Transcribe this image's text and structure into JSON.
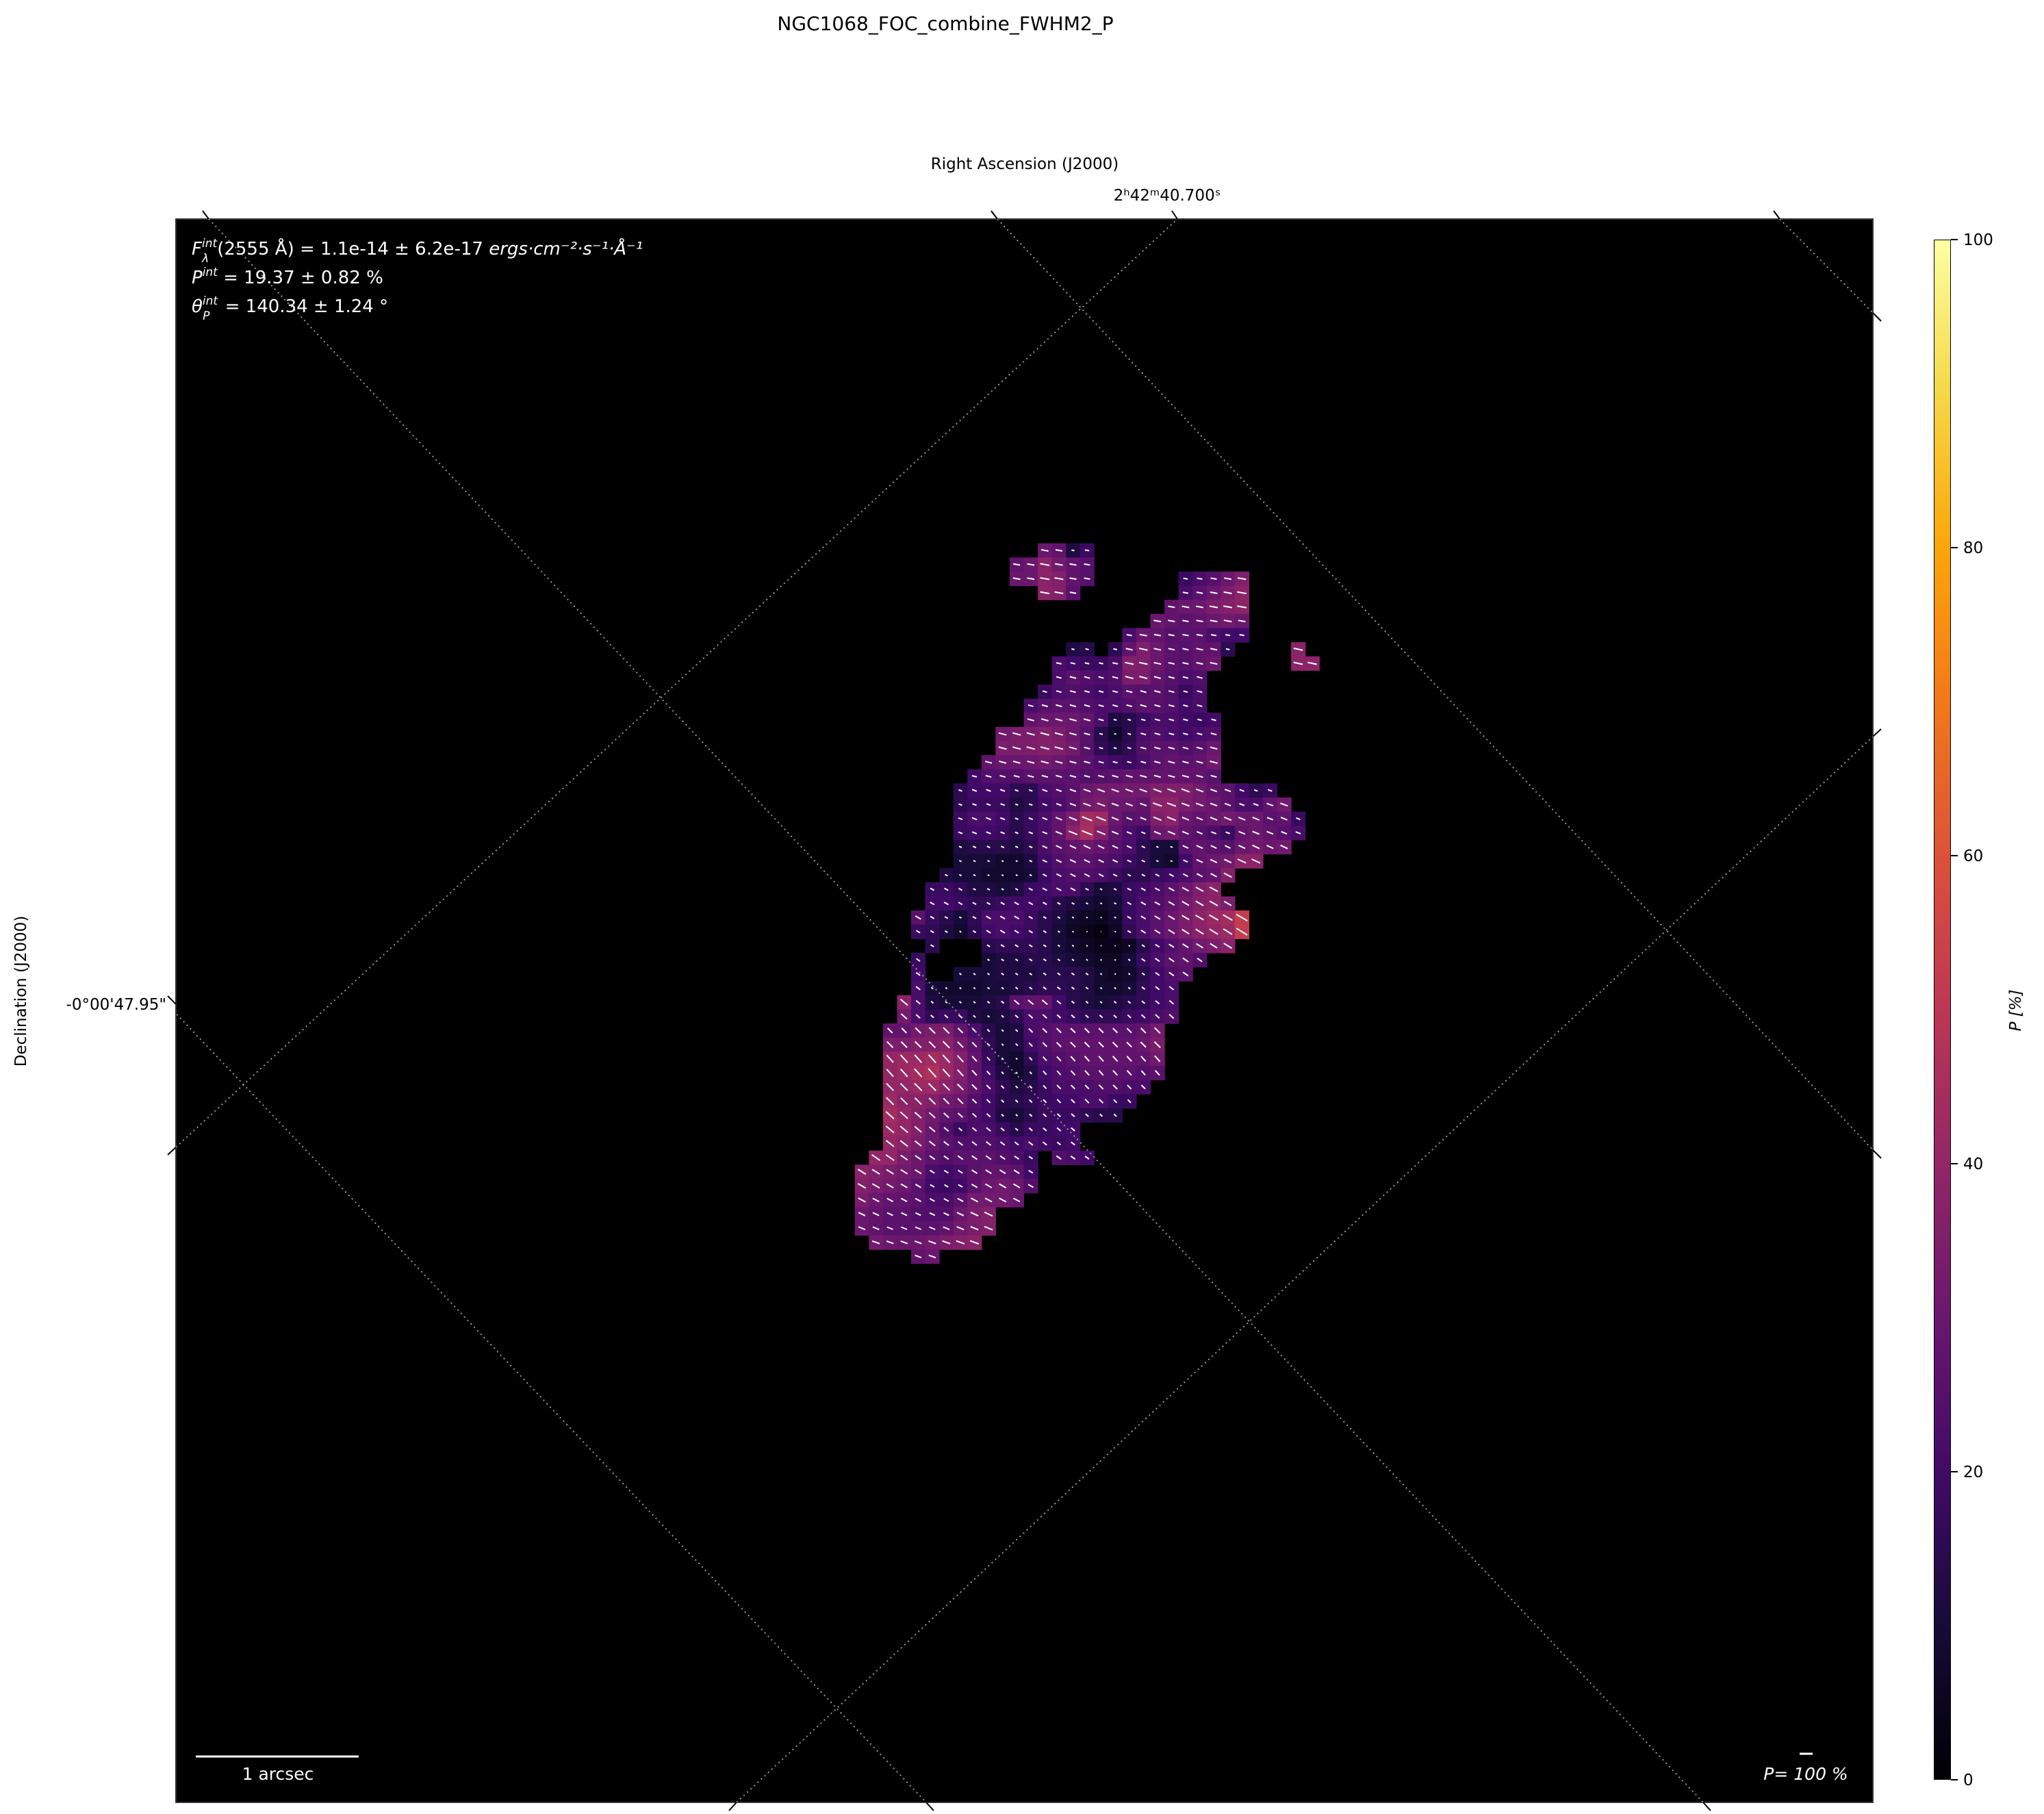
{
  "chart_data": {
    "type": "heatmap",
    "title": "NGC1068_FOC_combine_FWHM2_P",
    "xlabel": "Right Ascension (J2000)",
    "ylabel": "Declination (J2000)",
    "x_tick_label": "2ʰ42ᵐ40.700ˢ",
    "y_tick_label": "-0°00'47.95\"",
    "colorbar": {
      "label": "P [%]",
      "range": [
        0,
        100
      ],
      "ticks": [
        "0",
        "20",
        "40",
        "60",
        "80",
        "100"
      ],
      "colormap": "inferno"
    },
    "grid": "dotted WCS grid",
    "annotations": {
      "flux": {
        "symbol": "F",
        "sup": "int",
        "sub": "λ",
        "text": "(2555 Å) = 1.1e-14 ± 6.2e-17 ",
        "units": "ergs·cm⁻²·s⁻¹·Å⁻¹"
      },
      "pol": {
        "symbol": "P",
        "sup": "int",
        "text": " = 19.37 ± 0.82 %"
      },
      "angle": {
        "symbol": "θ",
        "sup": "int",
        "sub": "P",
        "text": " = 140.34 ± 1.24 °"
      }
    },
    "scale_bar_label": "1 arcsec",
    "vector_scale_label": "P= 100 %",
    "rows": [
      {
        "start": 15,
        "theta": 100,
        "p": [
          30,
          28,
          12,
          18
        ]
      },
      {
        "start": 13,
        "theta": 100,
        "p": [
          28,
          30,
          38,
          32,
          28,
          25
        ]
      },
      {
        "start": 13,
        "theta": 100,
        "p": [
          30,
          30,
          38,
          36,
          28,
          25,
          null,
          null,
          null,
          null,
          null,
          null,
          18,
          22,
          25,
          30,
          35
        ]
      },
      {
        "start": 15,
        "theta": 100,
        "p": [
          38,
          36,
          26,
          null,
          null,
          null,
          null,
          null,
          null,
          null,
          22,
          26,
          30,
          34,
          38
        ]
      },
      {
        "start": 24,
        "theta": 100,
        "p": [
          28,
          30,
          30,
          34,
          36,
          38
        ]
      },
      {
        "start": 23,
        "theta": 100,
        "p": [
          30,
          28,
          26,
          28,
          30,
          32,
          30
        ]
      },
      {
        "start": 21,
        "theta": 100,
        "p": [
          22,
          30,
          28,
          25,
          26,
          26,
          22,
          20,
          20
        ]
      },
      {
        "start": 17,
        "theta": 102,
        "p": [
          12,
          14,
          null,
          15,
          28,
          35,
          30,
          26,
          25,
          28,
          28,
          15,
          null,
          null,
          null,
          null,
          38
        ]
      },
      {
        "start": 16,
        "theta": 102,
        "p": [
          22,
          20,
          18,
          18,
          22,
          36,
          35,
          30,
          26,
          25,
          28,
          30,
          null,
          null,
          null,
          null,
          null,
          38,
          38
        ]
      },
      {
        "start": 16,
        "theta": 105,
        "p": [
          22,
          26,
          24,
          22,
          24,
          34,
          34,
          28,
          25,
          22,
          24
        ]
      },
      {
        "start": 15,
        "theta": 105,
        "p": [
          18,
          22,
          24,
          22,
          20,
          22,
          26,
          25,
          26,
          24,
          18,
          22
        ]
      },
      {
        "start": 14,
        "theta": 105,
        "p": [
          22,
          25,
          26,
          26,
          24,
          22,
          22,
          24,
          26,
          25,
          24,
          20,
          22
        ]
      },
      {
        "start": 14,
        "theta": 105,
        "p": [
          28,
          30,
          30,
          30,
          28,
          22,
          12,
          14,
          18,
          22,
          22,
          20,
          18,
          20
        ]
      },
      {
        "start": 12,
        "theta": 105,
        "p": [
          32,
          34,
          34,
          36,
          34,
          30,
          25,
          14,
          8,
          14,
          22,
          24,
          22,
          20,
          22,
          24
        ]
      },
      {
        "start": 12,
        "theta": 105,
        "p": [
          34,
          34,
          35,
          36,
          35,
          32,
          25,
          16,
          12,
          16,
          24,
          26,
          26,
          24,
          26,
          30
        ]
      },
      {
        "start": 11,
        "theta": 105,
        "p": [
          28,
          30,
          30,
          30,
          32,
          30,
          28,
          26,
          22,
          20,
          18,
          22,
          26,
          28,
          26,
          28,
          32
        ]
      },
      {
        "start": 10,
        "theta": 105,
        "p": [
          20,
          24,
          24,
          24,
          26,
          26,
          26,
          26,
          24,
          25,
          26,
          28,
          28,
          28,
          28,
          28,
          28,
          25
        ]
      },
      {
        "start": 9,
        "theta": 110,
        "p": [
          15,
          20,
          20,
          20,
          15,
          15,
          22,
          24,
          26,
          30,
          32,
          32,
          32,
          32,
          35,
          35,
          35,
          32,
          28,
          26,
          20,
          15,
          18
        ]
      },
      {
        "start": 9,
        "theta": 110,
        "p": [
          15,
          18,
          18,
          18,
          12,
          15,
          20,
          22,
          26,
          32,
          34,
          30,
          30,
          28,
          38,
          38,
          34,
          32,
          30,
          26,
          22,
          22,
          28,
          32
        ]
      },
      {
        "start": 9,
        "theta": 112,
        "p": [
          18,
          22,
          22,
          20,
          14,
          18,
          22,
          28,
          34,
          44,
          42,
          30,
          25,
          26,
          35,
          38,
          30,
          28,
          30,
          32,
          30,
          30,
          26,
          28,
          18
        ]
      },
      {
        "start": 9,
        "theta": 112,
        "p": [
          18,
          20,
          20,
          18,
          14,
          18,
          22,
          28,
          38,
          45,
          36,
          28,
          22,
          18,
          30,
          32,
          28,
          25,
          22,
          18,
          28,
          30,
          28,
          25,
          22
        ]
      },
      {
        "start": 9,
        "theta": 115,
        "p": [
          12,
          14,
          14,
          14,
          12,
          15,
          22,
          26,
          28,
          30,
          28,
          25,
          22,
          15,
          10,
          10,
          25,
          28,
          26,
          25,
          30,
          32,
          30,
          32
        ]
      },
      {
        "start": 9,
        "theta": 115,
        "p": [
          10,
          10,
          10,
          8,
          8,
          12,
          20,
          24,
          26,
          26,
          24,
          22,
          18,
          15,
          10,
          8,
          20,
          28,
          30,
          32,
          38,
          38
        ]
      },
      {
        "start": 8,
        "theta": 118,
        "p": [
          12,
          10,
          10,
          8,
          8,
          8,
          10,
          18,
          22,
          24,
          24,
          22,
          18,
          15,
          15,
          18,
          20,
          22,
          26,
          28,
          36
        ]
      },
      {
        "start": 7,
        "theta": 118,
        "p": [
          18,
          18,
          16,
          12,
          12,
          10,
          12,
          18,
          20,
          22,
          22,
          15,
          10,
          12,
          18,
          20,
          22,
          26,
          30,
          35,
          38
        ]
      },
      {
        "start": 7,
        "theta": 120,
        "p": [
          20,
          20,
          18,
          16,
          16,
          18,
          20,
          20,
          18,
          14,
          12,
          10,
          8,
          10,
          18,
          22,
          24,
          28,
          32,
          36,
          38,
          34
        ]
      },
      {
        "start": 6,
        "theta": 120,
        "p": [
          26,
          18,
          14,
          10,
          16,
          22,
          22,
          22,
          18,
          14,
          12,
          8,
          6,
          5,
          8,
          18,
          22,
          26,
          30,
          34,
          38,
          42,
          44,
          52
        ]
      },
      {
        "start": 6,
        "theta": 122,
        "p": [
          18,
          16,
          12,
          8,
          14,
          20,
          22,
          20,
          18,
          14,
          10,
          6,
          4,
          2,
          6,
          16,
          22,
          26,
          30,
          34,
          38,
          40,
          42,
          52
        ]
      },
      {
        "start": 7,
        "theta": 122,
        "p": [
          15,
          null,
          null,
          null,
          14,
          16,
          16,
          16,
          14,
          10,
          8,
          6,
          4,
          4,
          6,
          14,
          20,
          24,
          28,
          32,
          34,
          38
        ]
      },
      {
        "start": 6,
        "theta": 125,
        "p": [
          18,
          null,
          null,
          null,
          null,
          10,
          12,
          12,
          14,
          14,
          12,
          10,
          8,
          6,
          6,
          10,
          18,
          22,
          26,
          28,
          24
        ]
      },
      {
        "start": 6,
        "theta": 125,
        "p": [
          20,
          null,
          null,
          10,
          10,
          10,
          12,
          12,
          12,
          14,
          14,
          14,
          12,
          8,
          6,
          8,
          14,
          20,
          24,
          26
        ]
      },
      {
        "start": 6,
        "theta": 128,
        "p": [
          22,
          10,
          8,
          8,
          8,
          10,
          10,
          12,
          14,
          16,
          16,
          14,
          12,
          8,
          8,
          10,
          16,
          20,
          22
        ]
      },
      {
        "start": 5,
        "theta": 130,
        "p": [
          38,
          22,
          12,
          10,
          10,
          10,
          12,
          14,
          26,
          28,
          28,
          20,
          14,
          12,
          10,
          12,
          14,
          16,
          20,
          22
        ]
      },
      {
        "start": 5,
        "theta": 132,
        "p": [
          32,
          22,
          16,
          18,
          18,
          12,
          10,
          12,
          16,
          22,
          22,
          20,
          18,
          16,
          16,
          16,
          18,
          20,
          22,
          24
        ]
      },
      {
        "start": 4,
        "theta": 135,
        "p": [
          28,
          28,
          32,
          34,
          34,
          28,
          22,
          14,
          10,
          12,
          22,
          24,
          26,
          26,
          26,
          26,
          26,
          26,
          28,
          32
        ]
      },
      {
        "start": 4,
        "theta": 135,
        "p": [
          34,
          34,
          36,
          36,
          38,
          32,
          26,
          16,
          10,
          12,
          20,
          24,
          26,
          28,
          28,
          28,
          28,
          28,
          30,
          34
        ]
      },
      {
        "start": 4,
        "theta": 138,
        "p": [
          40,
          42,
          42,
          44,
          42,
          36,
          28,
          18,
          10,
          8,
          16,
          22,
          24,
          26,
          28,
          28,
          28,
          28,
          28,
          32
        ]
      },
      {
        "start": 4,
        "theta": 138,
        "p": [
          40,
          42,
          44,
          47,
          42,
          36,
          28,
          20,
          12,
          8,
          12,
          20,
          22,
          24,
          26,
          26,
          26,
          26,
          24,
          26
        ]
      },
      {
        "start": 4,
        "theta": 135,
        "p": [
          40,
          40,
          42,
          42,
          38,
          34,
          28,
          22,
          16,
          12,
          14,
          18,
          22,
          22,
          22,
          24,
          24,
          22,
          22
        ]
      },
      {
        "start": 4,
        "theta": 135,
        "p": [
          42,
          38,
          38,
          36,
          32,
          30,
          24,
          20,
          14,
          14,
          16,
          18,
          20,
          20,
          22,
          22,
          18,
          18
        ]
      },
      {
        "start": 4,
        "theta": 132,
        "p": [
          44,
          40,
          36,
          32,
          28,
          26,
          22,
          20,
          12,
          10,
          14,
          18,
          18,
          18,
          16,
          14,
          14
        ]
      },
      {
        "start": 4,
        "theta": 130,
        "p": [
          42,
          40,
          36,
          30,
          24,
          18,
          22,
          22,
          18,
          14,
          18,
          18,
          20,
          20
        ]
      },
      {
        "start": 4,
        "theta": 128,
        "p": [
          40,
          38,
          34,
          30,
          26,
          24,
          24,
          24,
          22,
          20,
          22,
          20,
          18,
          20
        ]
      },
      {
        "start": 3,
        "theta": 125,
        "p": [
          40,
          40,
          34,
          30,
          26,
          24,
          26,
          26,
          26,
          24,
          22,
          18,
          null,
          24,
          22,
          20
        ]
      },
      {
        "start": 2,
        "theta": 122,
        "p": [
          38,
          36,
          34,
          32,
          30,
          22,
          20,
          22,
          26,
          28,
          28,
          26,
          20
        ]
      },
      {
        "start": 2,
        "theta": 120,
        "p": [
          36,
          34,
          32,
          30,
          26,
          20,
          18,
          20,
          26,
          30,
          32,
          30,
          24
        ]
      },
      {
        "start": 2,
        "theta": 118,
        "p": [
          34,
          30,
          28,
          28,
          26,
          22,
          22,
          26,
          32,
          32,
          32,
          30
        ]
      },
      {
        "start": 2,
        "theta": 115,
        "p": [
          30,
          28,
          26,
          26,
          24,
          24,
          24,
          30,
          34,
          36
        ]
      },
      {
        "start": 2,
        "theta": 112,
        "p": [
          30,
          28,
          26,
          26,
          26,
          26,
          28,
          32,
          34,
          36
        ]
      },
      {
        "start": 3,
        "theta": 110,
        "p": [
          32,
          30,
          30,
          30,
          32,
          34,
          36,
          38
        ]
      },
      {
        "start": 6,
        "theta": 110,
        "p": [
          28,
          30
        ]
      }
    ]
  }
}
